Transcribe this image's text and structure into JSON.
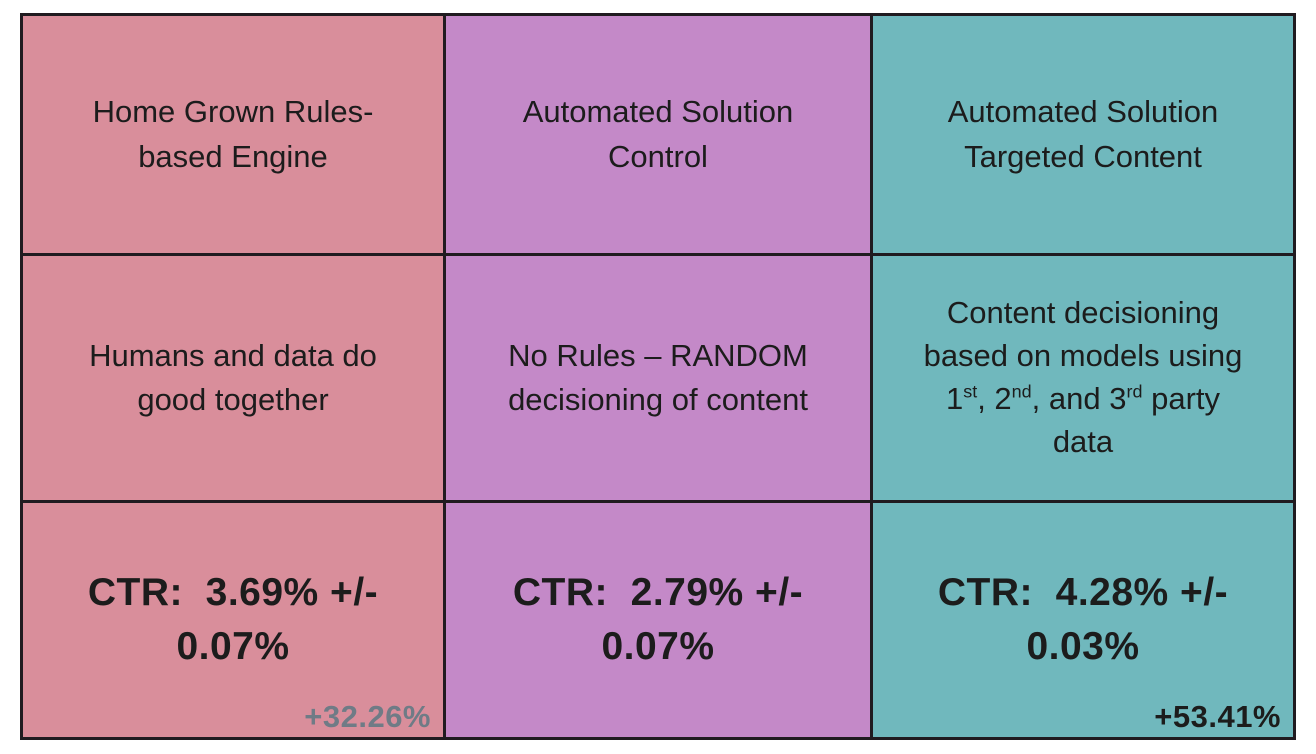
{
  "table": {
    "grid_color": "#201b20",
    "columns": [
      {
        "name": "Home Grown Rules-based Engine",
        "bg": "#d98e9b",
        "header": "Home Grown Rules-\nbased Engine",
        "description": "Humans and data do\ngood together",
        "ctr": "CTR:  3.69% +/-\n0.07%",
        "lift": "+32.26%",
        "lift_color": "#6f7b86"
      },
      {
        "name": "Automated Solution Control",
        "bg": "#c489c8",
        "header": "Automated Solution\nControl",
        "description": "No Rules – RANDOM\ndecisioning of content",
        "ctr": "CTR:  2.79% +/-\n0.07%",
        "lift": "",
        "lift_color": "#1c1c1c"
      },
      {
        "name": "Automated Solution Targeted Content",
        "bg": "#70b8bd",
        "header": "Automated Solution\nTargeted Content",
        "description_line1": "Content decisioning",
        "description_line2": "based on models using",
        "description_line3": {
          "t1": "1",
          "s1": "st",
          "t2": ", 2",
          "s2": "nd",
          "t3": ", and 3",
          "s3": "rd",
          "t4": " party"
        },
        "description_line4": "data",
        "ctr": "CTR:  4.28% +/-\n0.03%",
        "lift": "+53.41%",
        "lift_color": "#1c1c1c"
      }
    ]
  },
  "chart_data": {
    "type": "table",
    "title": "",
    "columns": [
      "Home Grown Rules-based Engine",
      "Automated Solution Control",
      "Automated Solution Targeted Content"
    ],
    "rows": [
      [
        "Home Grown Rules-based Engine",
        "Automated Solution Control",
        "Automated Solution Targeted Content"
      ],
      [
        "Humans and data do good together",
        "No Rules – RANDOM decisioning of content",
        "Content decisioning based on models using 1st, 2nd, and 3rd party data"
      ],
      [
        "CTR: 3.69% +/- 0.07% (+32.26%)",
        "CTR: 2.79% +/- 0.07%",
        "CTR: 4.28% +/- 0.03% (+53.41%)"
      ]
    ],
    "ctr_values": [
      {
        "variant": "Home Grown Rules-based Engine",
        "ctr_pct": 3.69,
        "margin_pct": 0.07,
        "lift_vs_control_pct": 32.26
      },
      {
        "variant": "Automated Solution Control",
        "ctr_pct": 2.79,
        "margin_pct": 0.07,
        "lift_vs_control_pct": null
      },
      {
        "variant": "Automated Solution Targeted Content",
        "ctr_pct": 4.28,
        "margin_pct": 0.03,
        "lift_vs_control_pct": 53.41
      }
    ],
    "column_colors": [
      "#d98e9b",
      "#c489c8",
      "#70b8bd"
    ],
    "layout": "3x3 grid, black grid lines, white page margin"
  }
}
